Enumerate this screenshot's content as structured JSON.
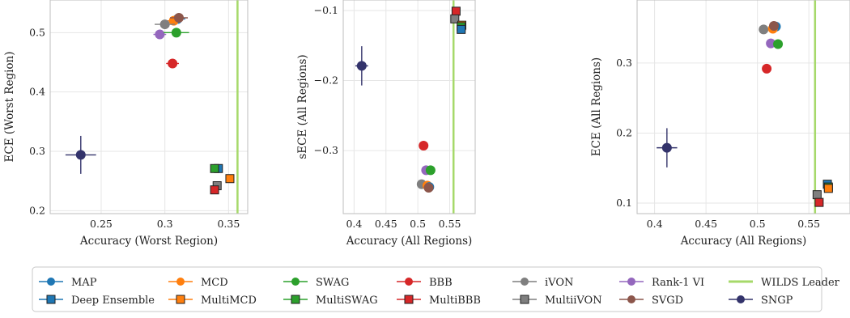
{
  "colors": {
    "MAP": "#1f77b4",
    "MCD": "#ff7f0e",
    "SWAG": "#2ca02c",
    "BBB": "#d62728",
    "iVON": "#7f7f7f",
    "Rank-1 VI": "#9467bd",
    "SVGD": "#8c564b",
    "SNGP": "#33336b",
    "WILDS Leader": "#a6d96a"
  },
  "legend": [
    {
      "name": "MAP",
      "marker": "circle",
      "color_key": "MAP"
    },
    {
      "name": "Deep Ensemble",
      "marker": "square",
      "color_key": "MAP"
    },
    {
      "name": "MCD",
      "marker": "circle",
      "color_key": "MCD"
    },
    {
      "name": "MultiMCD",
      "marker": "square",
      "color_key": "MCD"
    },
    {
      "name": "SWAG",
      "marker": "circle",
      "color_key": "SWAG"
    },
    {
      "name": "MultiSWAG",
      "marker": "square",
      "color_key": "SWAG"
    },
    {
      "name": "BBB",
      "marker": "circle",
      "color_key": "BBB"
    },
    {
      "name": "MultiBBB",
      "marker": "square",
      "color_key": "BBB"
    },
    {
      "name": "iVON",
      "marker": "circle",
      "color_key": "iVON"
    },
    {
      "name": "MultiiVON",
      "marker": "square",
      "color_key": "iVON"
    },
    {
      "name": "Rank-1 VI",
      "marker": "circle",
      "color_key": "Rank-1 VI"
    },
    {
      "name": "SVGD",
      "marker": "circle",
      "color_key": "SVGD"
    },
    {
      "name": "WILDS Leader",
      "marker": "line",
      "color_key": "WILDS Leader"
    },
    {
      "name": "SNGP",
      "marker": "circle",
      "color_key": "SNGP"
    }
  ],
  "chart_data": [
    {
      "type": "scatter",
      "title": "",
      "xlabel": "Accuracy (Worst Region)",
      "ylabel": "ECE (Worst Region)",
      "xlim": [
        0.21,
        0.365
      ],
      "ylim": [
        0.195,
        0.555
      ],
      "xticks": [
        0.25,
        0.3,
        0.35
      ],
      "xtick_labels": [
        "0.25",
        "0.3",
        "0.35"
      ],
      "yticks": [
        0.2,
        0.3,
        0.4,
        0.5
      ],
      "ytick_labels": [
        "0.2",
        "0.3",
        "0.4",
        "0.5"
      ],
      "grid": true,
      "vline": 0.357,
      "points": [
        {
          "method": "MAP",
          "marker": "circle",
          "x": 0.31,
          "y": 0.523,
          "xerr": 0.006,
          "yerr": 0.004
        },
        {
          "method": "MCD",
          "marker": "circle",
          "x": 0.307,
          "y": 0.52,
          "xerr": 0.005,
          "yerr": 0.004
        },
        {
          "method": "iVON",
          "marker": "circle",
          "x": 0.3,
          "y": 0.514,
          "xerr": 0.008,
          "yerr": 0.004
        },
        {
          "method": "SVGD",
          "marker": "circle",
          "x": 0.311,
          "y": 0.525,
          "xerr": 0.007,
          "yerr": 0.004
        },
        {
          "method": "Rank-1 VI",
          "marker": "circle",
          "x": 0.296,
          "y": 0.497,
          "xerr": 0.005,
          "yerr": 0.004
        },
        {
          "method": "SWAG",
          "marker": "circle",
          "x": 0.309,
          "y": 0.5,
          "xerr": 0.01,
          "yerr": 0.004
        },
        {
          "method": "BBB",
          "marker": "circle",
          "x": 0.306,
          "y": 0.448,
          "xerr": 0.005,
          "yerr": 0.004
        },
        {
          "method": "SNGP",
          "marker": "circle",
          "x": 0.234,
          "y": 0.294,
          "xerr": 0.012,
          "yerr": 0.032
        },
        {
          "method": "Deep Ensemble",
          "marker": "square",
          "x": 0.342,
          "y": 0.271,
          "xerr": 0.002,
          "yerr": 0.003
        },
        {
          "method": "MultiSWAG",
          "marker": "square",
          "x": 0.339,
          "y": 0.271,
          "xerr": 0.002,
          "yerr": 0.003
        },
        {
          "method": "MultiMCD",
          "marker": "square",
          "x": 0.351,
          "y": 0.254,
          "xerr": 0.002,
          "yerr": 0.003
        },
        {
          "method": "MultiiVON",
          "marker": "square",
          "x": 0.341,
          "y": 0.242,
          "xerr": 0.002,
          "yerr": 0.003
        },
        {
          "method": "MultiBBB",
          "marker": "square",
          "x": 0.339,
          "y": 0.235,
          "xerr": 0.003,
          "yerr": 0.003
        }
      ]
    },
    {
      "type": "scatter",
      "title": "",
      "xlabel": "Accuracy (All Regions)",
      "ylabel": "sECE (All Regions)",
      "xlim": [
        0.383,
        0.59
      ],
      "ylim": [
        -0.39,
        -0.085
      ],
      "xticks": [
        0.4,
        0.45,
        0.5,
        0.55
      ],
      "xtick_labels": [
        "0.4",
        "0.45",
        "0.5",
        "0.55"
      ],
      "yticks": [
        -0.3,
        -0.2,
        -0.1
      ],
      "ytick_labels": [
        "−0.3",
        "−0.2",
        "−0.1"
      ],
      "grid": true,
      "vline": 0.556,
      "points": [
        {
          "method": "SNGP",
          "marker": "circle",
          "x": 0.412,
          "y": -0.179,
          "xerr": 0.01,
          "yerr": 0.028
        },
        {
          "method": "BBB",
          "marker": "circle",
          "x": 0.509,
          "y": -0.293,
          "xerr": 0.002,
          "yerr": 0.003
        },
        {
          "method": "Rank-1 VI",
          "marker": "circle",
          "x": 0.513,
          "y": -0.328,
          "xerr": 0.002,
          "yerr": 0.003
        },
        {
          "method": "SWAG",
          "marker": "circle",
          "x": 0.52,
          "y": -0.328,
          "xerr": 0.002,
          "yerr": 0.003
        },
        {
          "method": "iVON",
          "marker": "circle",
          "x": 0.506,
          "y": -0.348,
          "xerr": 0.002,
          "yerr": 0.003
        },
        {
          "method": "MCD",
          "marker": "circle",
          "x": 0.515,
          "y": -0.35,
          "xerr": 0.002,
          "yerr": 0.003
        },
        {
          "method": "MAP",
          "marker": "circle",
          "x": 0.518,
          "y": -0.352,
          "xerr": 0.002,
          "yerr": 0.003
        },
        {
          "method": "SVGD",
          "marker": "circle",
          "x": 0.517,
          "y": -0.353,
          "xerr": 0.002,
          "yerr": 0.003
        },
        {
          "method": "MultiBBB",
          "marker": "square",
          "x": 0.56,
          "y": -0.101,
          "xerr": 0.001,
          "yerr": 0.002
        },
        {
          "method": "MultiiVON",
          "marker": "square",
          "x": 0.558,
          "y": -0.112,
          "xerr": 0.001,
          "yerr": 0.002
        },
        {
          "method": "MultiMCD",
          "marker": "square",
          "x": 0.569,
          "y": -0.121,
          "xerr": 0.001,
          "yerr": 0.002
        },
        {
          "method": "MultiSWAG",
          "marker": "square",
          "x": 0.568,
          "y": -0.123,
          "xerr": 0.001,
          "yerr": 0.002
        },
        {
          "method": "Deep Ensemble",
          "marker": "square",
          "x": 0.568,
          "y": -0.127,
          "xerr": 0.001,
          "yerr": 0.002
        }
      ]
    },
    {
      "type": "scatter",
      "title": "",
      "xlabel": "Accuracy (All Regions)",
      "ylabel": "ECE (All Regions)",
      "xlim": [
        0.383,
        0.59
      ],
      "ylim": [
        0.085,
        0.39
      ],
      "xticks": [
        0.4,
        0.45,
        0.5,
        0.55
      ],
      "xtick_labels": [
        "0.4",
        "0.45",
        "0.5",
        "0.55"
      ],
      "yticks": [
        0.1,
        0.2,
        0.3
      ],
      "ytick_labels": [
        "0.1",
        "0.2",
        "0.3"
      ],
      "grid": true,
      "vline": 0.556,
      "points": [
        {
          "method": "iVON",
          "marker": "circle",
          "x": 0.506,
          "y": 0.348,
          "xerr": 0.002,
          "yerr": 0.003
        },
        {
          "method": "MAP",
          "marker": "circle",
          "x": 0.518,
          "y": 0.352,
          "xerr": 0.002,
          "yerr": 0.003
        },
        {
          "method": "MCD",
          "marker": "circle",
          "x": 0.515,
          "y": 0.349,
          "xerr": 0.002,
          "yerr": 0.003
        },
        {
          "method": "SVGD",
          "marker": "circle",
          "x": 0.516,
          "y": 0.353,
          "xerr": 0.002,
          "yerr": 0.003
        },
        {
          "method": "Rank-1 VI",
          "marker": "circle",
          "x": 0.513,
          "y": 0.328,
          "xerr": 0.002,
          "yerr": 0.003
        },
        {
          "method": "SWAG",
          "marker": "circle",
          "x": 0.52,
          "y": 0.327,
          "xerr": 0.002,
          "yerr": 0.003
        },
        {
          "method": "BBB",
          "marker": "circle",
          "x": 0.509,
          "y": 0.292,
          "xerr": 0.002,
          "yerr": 0.003
        },
        {
          "method": "SNGP",
          "marker": "circle",
          "x": 0.412,
          "y": 0.179,
          "xerr": 0.01,
          "yerr": 0.028
        },
        {
          "method": "Deep Ensemble",
          "marker": "square",
          "x": 0.568,
          "y": 0.127,
          "xerr": 0.001,
          "yerr": 0.002
        },
        {
          "method": "MultiSWAG",
          "marker": "square",
          "x": 0.569,
          "y": 0.123,
          "xerr": 0.001,
          "yerr": 0.002
        },
        {
          "method": "MultiMCD",
          "marker": "square",
          "x": 0.569,
          "y": 0.121,
          "xerr": 0.001,
          "yerr": 0.002
        },
        {
          "method": "MultiiVON",
          "marker": "square",
          "x": 0.558,
          "y": 0.112,
          "xerr": 0.001,
          "yerr": 0.002
        },
        {
          "method": "MultiBBB",
          "marker": "square",
          "x": 0.56,
          "y": 0.101,
          "xerr": 0.001,
          "yerr": 0.002
        }
      ]
    }
  ]
}
